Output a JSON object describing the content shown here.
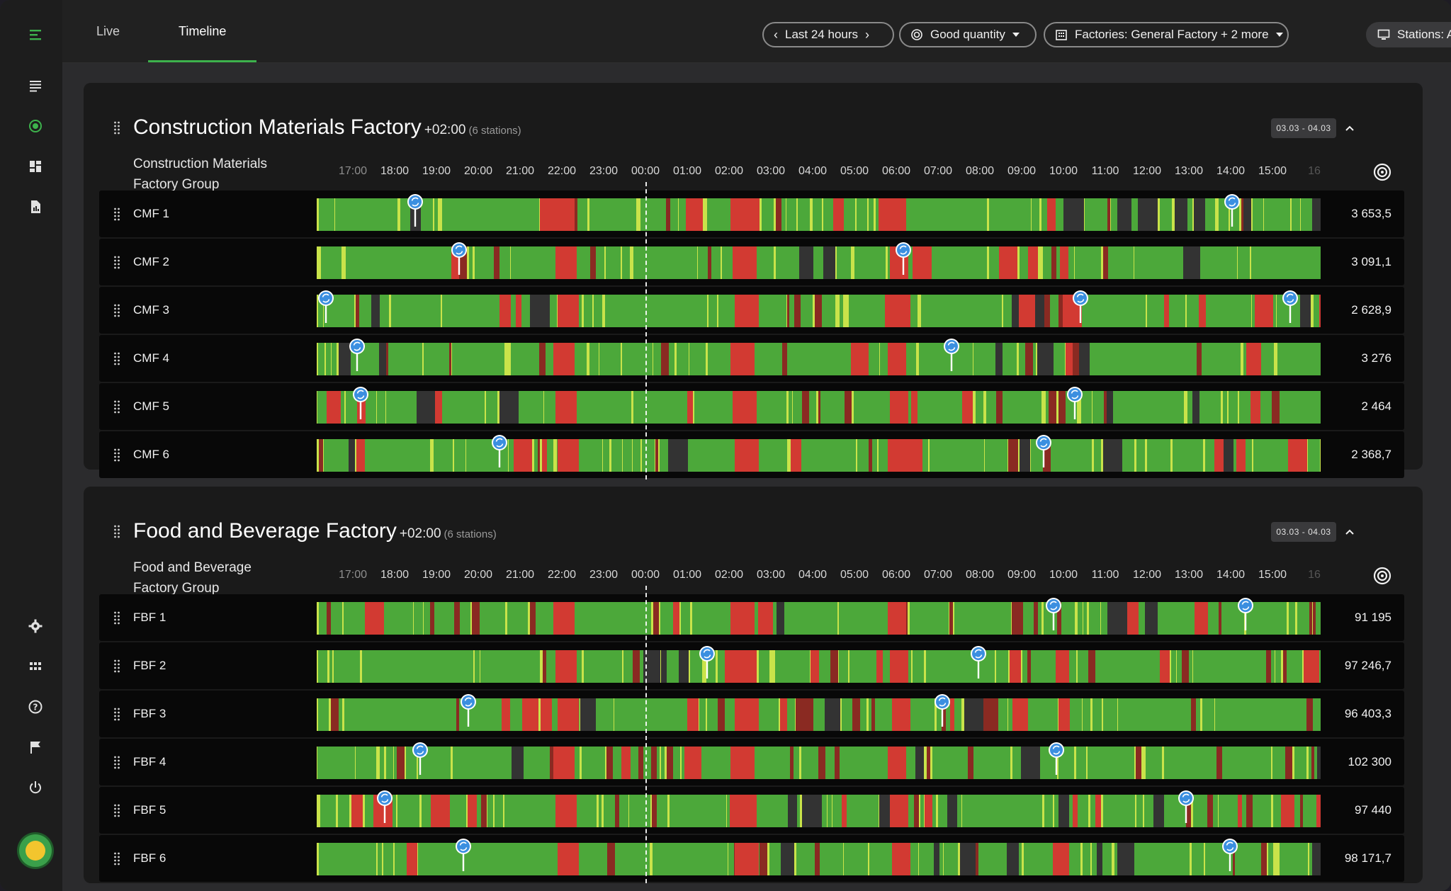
{
  "tabs": [
    {
      "label": "Live",
      "active": false
    },
    {
      "label": "Timeline",
      "active": true
    }
  ],
  "filters": {
    "time_range": "Last 24 hours",
    "metric": "Good quantity",
    "factories": "Factories: General Factory + 2 more",
    "stations": "Stations: All"
  },
  "sidebar": {
    "top_icons": [
      "menu-icon",
      "list-icon",
      "live-status-icon",
      "dashboard-icon",
      "report-icon"
    ],
    "bottom_icons": [
      "settings-icon",
      "apps-grid-icon",
      "help-icon",
      "flag-icon",
      "power-icon"
    ]
  },
  "hours": [
    "17:00",
    "18:00",
    "19:00",
    "20:00",
    "21:00",
    "22:00",
    "23:00",
    "00:00",
    "01:00",
    "02:00",
    "03:00",
    "04:00",
    "05:00",
    "06:00",
    "07:00",
    "08:00",
    "09:00",
    "10:00",
    "11:00",
    "12:00",
    "13:00",
    "14:00",
    "15:00",
    "16"
  ],
  "colors": {
    "good": "#4ca83a",
    "stop": "#d23a32",
    "dark_stop": "#8a2a22",
    "idle": "#333333",
    "spike": "#c9e34a",
    "pin": "#3b8fe0"
  },
  "factories": [
    {
      "name": "Construction Materials Factory",
      "tz": "+02:00",
      "stations_note": "(6 stations)",
      "group": "Construction Materials Factory Group",
      "date_range": "03.03 - 04.03",
      "rows": [
        {
          "name": "CMF 1",
          "value": "3 653,5",
          "pins": [
            0.098,
            0.912
          ]
        },
        {
          "name": "CMF 2",
          "value": "3 091,1",
          "pins": [
            0.142,
            0.584
          ]
        },
        {
          "name": "CMF 3",
          "value": "2 628,9",
          "pins": [
            0.009,
            0.761,
            0.97
          ]
        },
        {
          "name": "CMF 4",
          "value": "3 276",
          "pins": [
            0.04,
            0.632
          ]
        },
        {
          "name": "CMF 5",
          "value": "2 464",
          "pins": [
            0.044,
            0.755
          ]
        },
        {
          "name": "CMF 6",
          "value": "2 368,7",
          "pins": [
            0.182,
            0.724
          ]
        }
      ]
    },
    {
      "name": "Food and Beverage Factory",
      "tz": "+02:00",
      "stations_note": "(6 stations)",
      "group": "Food and Beverage Factory Group",
      "date_range": "03.03 - 04.03",
      "rows": [
        {
          "name": "FBF 1",
          "value": "91 195",
          "pins": [
            0.734,
            0.925
          ]
        },
        {
          "name": "FBF 2",
          "value": "97 246,7",
          "pins": [
            0.389,
            0.659
          ]
        },
        {
          "name": "FBF 3",
          "value": "96 403,3",
          "pins": [
            0.151,
            0.623
          ]
        },
        {
          "name": "FBF 4",
          "value": "102 300",
          "pins": [
            0.103,
            0.737
          ]
        },
        {
          "name": "FBF 5",
          "value": "97 440",
          "pins": [
            0.068,
            0.866
          ]
        },
        {
          "name": "FBF 6",
          "value": "98 171,7",
          "pins": [
            0.146,
            0.91
          ]
        }
      ]
    }
  ]
}
